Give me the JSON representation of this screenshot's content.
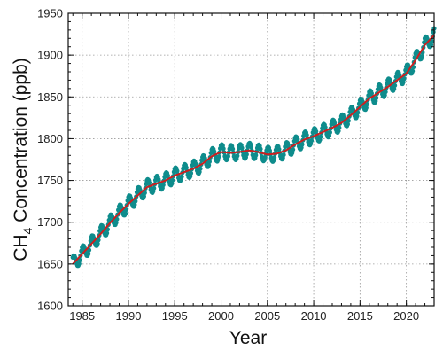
{
  "chart_data": {
    "type": "line",
    "title": "",
    "xlabel": "Year",
    "ylabel": {
      "prefix": "CH",
      "subscript": "4",
      "suffix": " Concentration (ppb)"
    },
    "xlim": [
      1983.5,
      2023.0
    ],
    "ylim": [
      1600,
      1950
    ],
    "x_ticks": [
      1985,
      1990,
      1995,
      2000,
      2005,
      2010,
      2015,
      2020
    ],
    "y_ticks": [
      1600,
      1650,
      1700,
      1750,
      1800,
      1850,
      1900,
      1950
    ],
    "x_minor_step": 1,
    "y_minor_step": 10,
    "grid": true,
    "seasonal_amplitude_ppb": 9,
    "series": [
      {
        "kind": "monthly-markers",
        "color": "#0e8c8c",
        "x": [
          1984.0,
          1985.0,
          1986.0,
          1987.0,
          1988.0,
          1989.0,
          1990.0,
          1991.0,
          1992.0,
          1993.0,
          1994.0,
          1995.0,
          1996.0,
          1997.0,
          1998.0,
          1999.0,
          2000.0,
          2001.0,
          2002.0,
          2003.0,
          2004.0,
          2005.0,
          2006.0,
          2007.0,
          2008.0,
          2009.0,
          2010.0,
          2011.0,
          2012.0,
          2013.0,
          2014.0,
          2015.0,
          2016.0,
          2017.0,
          2018.0,
          2019.0,
          2020.0,
          2021.0,
          2022.0,
          2023.0
        ],
        "y": [
          1650,
          1662,
          1674,
          1686,
          1699,
          1711,
          1722,
          1732,
          1742,
          1746,
          1750,
          1756,
          1760,
          1764,
          1770,
          1779,
          1784,
          1783,
          1784,
          1786,
          1784,
          1781,
          1782,
          1786,
          1793,
          1799,
          1803,
          1808,
          1813,
          1819,
          1828,
          1838,
          1848,
          1855,
          1862,
          1870,
          1878,
          1894,
          1912,
          1924
        ]
      },
      {
        "kind": "trend-line",
        "color": "#cc1f1f",
        "x": [
          1984.0,
          1985.0,
          1986.0,
          1987.0,
          1988.0,
          1989.0,
          1990.0,
          1991.0,
          1992.0,
          1993.0,
          1994.0,
          1995.0,
          1996.0,
          1997.0,
          1998.0,
          1999.0,
          2000.0,
          2001.0,
          2002.0,
          2003.0,
          2004.0,
          2005.0,
          2006.0,
          2007.0,
          2008.0,
          2009.0,
          2010.0,
          2011.0,
          2012.0,
          2013.0,
          2014.0,
          2015.0,
          2016.0,
          2017.0,
          2018.0,
          2019.0,
          2020.0,
          2021.0,
          2022.0,
          2023.0
        ],
        "y": [
          1650,
          1662,
          1674,
          1686,
          1699,
          1711,
          1722,
          1732,
          1742,
          1746,
          1750,
          1756,
          1760,
          1764,
          1770,
          1779,
          1784,
          1783,
          1784,
          1786,
          1784,
          1781,
          1782,
          1786,
          1793,
          1799,
          1803,
          1808,
          1813,
          1819,
          1828,
          1838,
          1848,
          1855,
          1862,
          1870,
          1878,
          1894,
          1912,
          1924
        ]
      }
    ]
  }
}
